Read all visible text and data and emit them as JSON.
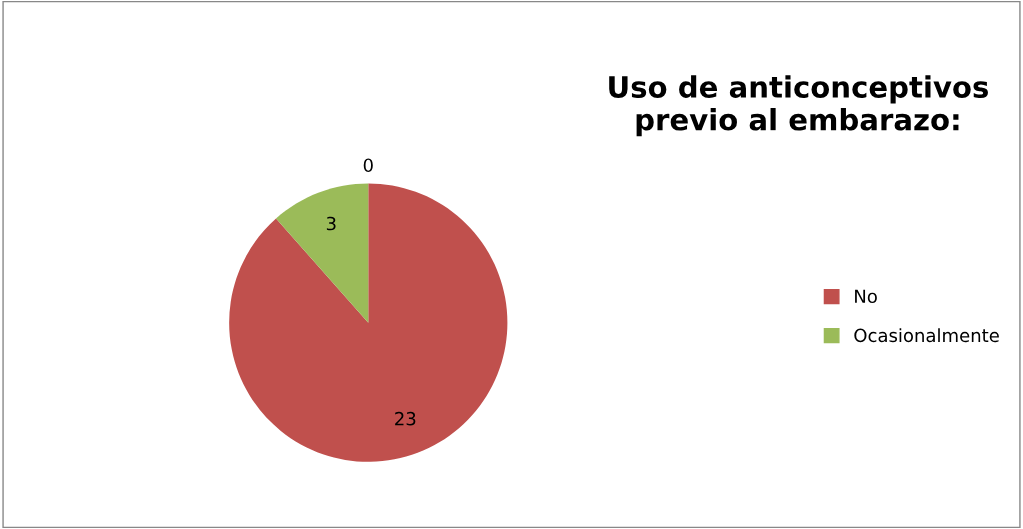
{
  "chart_data": {
    "type": "pie",
    "title": "Uso de anticonceptivos\nprevio al embarazo:",
    "categories": [
      "No",
      "Ocasionalmente",
      null
    ],
    "values": [
      23,
      3,
      0
    ],
    "colors": [
      "#c0504d",
      "#9bbb59",
      "#4f81bd"
    ],
    "value_labels": [
      "23",
      "3",
      "0"
    ],
    "legend": "right"
  }
}
